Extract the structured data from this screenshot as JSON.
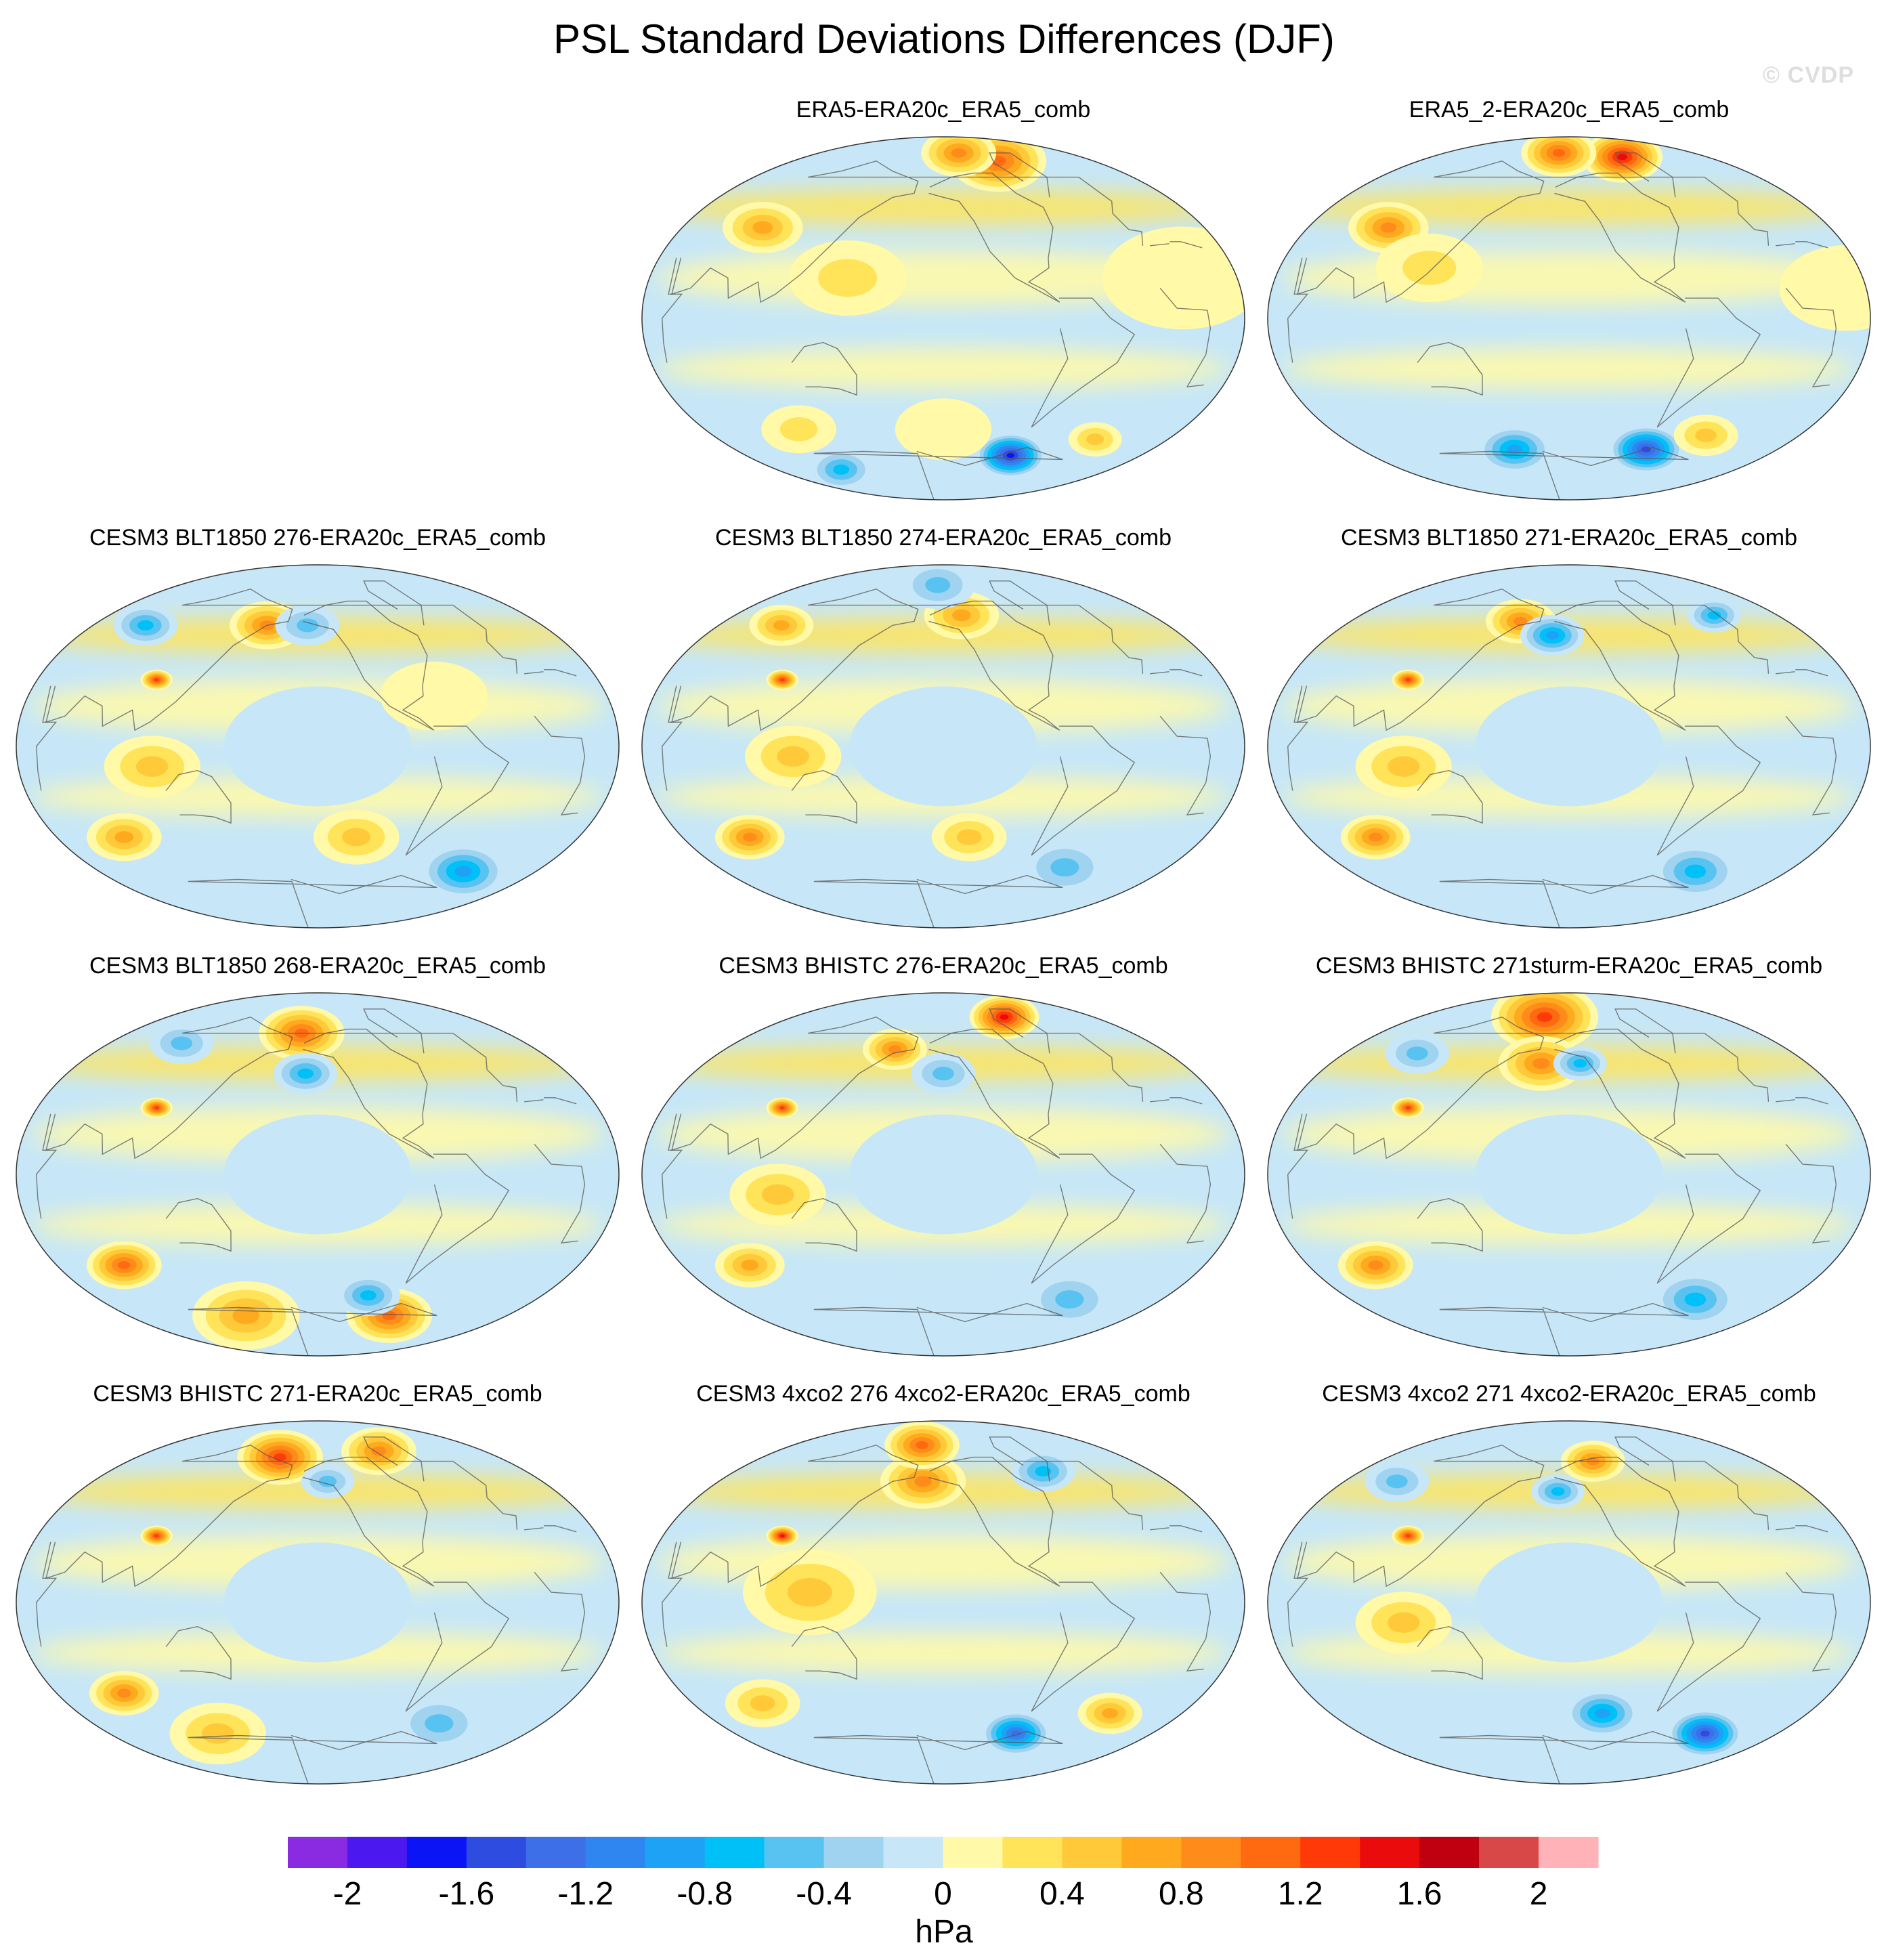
{
  "title": "PSL Standard Deviations Differences (DJF)",
  "watermark": "© CVDP",
  "units": "hPa",
  "colorbar": {
    "levels": [
      -2.2,
      -2.0,
      -1.8,
      -1.6,
      -1.4,
      -1.2,
      -1.0,
      -0.8,
      -0.6,
      -0.4,
      -0.2,
      0,
      0.2,
      0.4,
      0.6,
      0.8,
      1.0,
      1.2,
      1.4,
      1.6,
      1.8,
      2.0,
      2.2
    ],
    "colors": [
      "#8a2be2",
      "#4b18f0",
      "#0a14f5",
      "#2e4de0",
      "#3d6fe8",
      "#2f86f0",
      "#1ea2f5",
      "#00c0f8",
      "#58c3f0",
      "#9fd3ef",
      "#c7e7f8",
      "#fff9a8",
      "#ffe45a",
      "#ffc93a",
      "#ffaa1e",
      "#ff8c1a",
      "#ff6a10",
      "#ff3a08",
      "#ea0c0c",
      "#c00010",
      "#d94848",
      "#ffb3b8"
    ],
    "tick_labels": [
      {
        "value": -2.0,
        "label": "-2"
      },
      {
        "value": -1.6,
        "label": "-1.6"
      },
      {
        "value": -1.2,
        "label": "-1.2"
      },
      {
        "value": -0.8,
        "label": "-0.8"
      },
      {
        "value": -0.4,
        "label": "-0.4"
      },
      {
        "value": 0,
        "label": "0"
      },
      {
        "value": 0.4,
        "label": "0.4"
      },
      {
        "value": 0.8,
        "label": "0.8"
      },
      {
        "value": 1.2,
        "label": "1.2"
      },
      {
        "value": 1.6,
        "label": "1.6"
      },
      {
        "value": 2.0,
        "label": "2"
      }
    ]
  },
  "panels": [
    {
      "title": "ERA5-ERA20c_ERA5_comb",
      "features": [
        {
          "lon": -60,
          "lat": 78,
          "v": 1.2,
          "r": 18
        },
        {
          "lon": -120,
          "lat": 82,
          "v": 1.0,
          "r": 14
        },
        {
          "lon": 70,
          "lat": 45,
          "v": 0.8,
          "r": 15
        },
        {
          "lon": 150,
          "lat": 20,
          "v": 0.4,
          "r": 22
        },
        {
          "lon": 0,
          "lat": 20,
          "v": 0.3,
          "r": 30
        },
        {
          "lon": -70,
          "lat": -68,
          "v": -1.8,
          "r": 13
        },
        {
          "lon": 0,
          "lat": -60,
          "v": 0.6,
          "r": 10
        },
        {
          "lon": 80,
          "lat": -55,
          "v": 0.4,
          "r": 14
        },
        {
          "lon": -150,
          "lat": -55,
          "v": 0.3,
          "r": 18
        },
        {
          "lon": 60,
          "lat": -75,
          "v": -0.8,
          "r": 12
        }
      ]
    },
    {
      "title": "ERA5_2-ERA20c_ERA5_comb",
      "features": [
        {
          "lon": -55,
          "lat": 80,
          "v": 1.6,
          "r": 15
        },
        {
          "lon": -170,
          "lat": 82,
          "v": 1.2,
          "r": 14
        },
        {
          "lon": 70,
          "lat": 45,
          "v": 0.9,
          "r": 15
        },
        {
          "lon": 120,
          "lat": 25,
          "v": 0.4,
          "r": 20
        },
        {
          "lon": 20,
          "lat": 15,
          "v": 0.3,
          "r": 25
        },
        {
          "lon": -65,
          "lat": -65,
          "v": -1.5,
          "r": 14
        },
        {
          "lon": -20,
          "lat": -58,
          "v": 0.5,
          "r": 12
        },
        {
          "lon": 150,
          "lat": -65,
          "v": -0.9,
          "r": 14
        }
      ]
    },
    {
      "title": "CESM3 BLT1850 276-ERA20c_ERA5_comb",
      "features": [
        {
          "lon": 100,
          "lat": 33,
          "v": 1.4,
          "r": 6
        },
        {
          "lon": 160,
          "lat": 60,
          "v": 1.0,
          "r": 14
        },
        {
          "lon": -160,
          "lat": 60,
          "v": -0.7,
          "r": 12
        },
        {
          "lon": 40,
          "lat": 60,
          "v": -0.8,
          "r": 12
        },
        {
          "lon": 60,
          "lat": -45,
          "v": 0.8,
          "r": 14
        },
        {
          "lon": -120,
          "lat": -45,
          "v": 0.6,
          "r": 16
        },
        {
          "lon": 0,
          "lat": -62,
          "v": -0.9,
          "r": 16
        },
        {
          "lon": -150,
          "lat": 0,
          "v": -0.3,
          "r": 35
        },
        {
          "lon": 110,
          "lat": -10,
          "v": 0.6,
          "r": 18
        },
        {
          "lon": -75,
          "lat": 25,
          "v": 0.3,
          "r": 20
        }
      ]
    },
    {
      "title": "CESM3 BLT1850 274-ERA20c_ERA5_comb",
      "features": [
        {
          "lon": 100,
          "lat": 33,
          "v": 1.4,
          "r": 6
        },
        {
          "lon": -130,
          "lat": 65,
          "v": 0.8,
          "r": 14
        },
        {
          "lon": -160,
          "lat": 80,
          "v": -0.7,
          "r": 14
        },
        {
          "lon": 50,
          "lat": 60,
          "v": 0.8,
          "r": 12
        },
        {
          "lon": 60,
          "lat": -45,
          "v": 1.0,
          "r": 13
        },
        {
          "lon": -130,
          "lat": -45,
          "v": 0.6,
          "r": 14
        },
        {
          "lon": -30,
          "lat": -60,
          "v": -0.7,
          "r": 16
        },
        {
          "lon": -150,
          "lat": 0,
          "v": -0.3,
          "r": 35
        },
        {
          "lon": 120,
          "lat": -5,
          "v": 0.6,
          "r": 18
        }
      ]
    },
    {
      "title": "CESM3 BLT1850 271-ERA20c_ERA5_comb",
      "features": [
        {
          "lon": 100,
          "lat": 33,
          "v": 1.4,
          "r": 6
        },
        {
          "lon": 160,
          "lat": 62,
          "v": 1.0,
          "r": 13
        },
        {
          "lon": -165,
          "lat": 55,
          "v": -0.9,
          "r": 12
        },
        {
          "lon": 10,
          "lat": 65,
          "v": -0.8,
          "r": 10
        },
        {
          "lon": 60,
          "lat": -45,
          "v": 1.0,
          "r": 13
        },
        {
          "lon": -20,
          "lat": -62,
          "v": -0.8,
          "r": 16
        },
        {
          "lon": -150,
          "lat": 0,
          "v": -0.3,
          "r": 35
        },
        {
          "lon": 110,
          "lat": -10,
          "v": 0.6,
          "r": 18
        }
      ]
    },
    {
      "title": "CESM3 BLT1850 268-ERA20c_ERA5_comb",
      "features": [
        {
          "lon": 100,
          "lat": 33,
          "v": 1.4,
          "r": 6
        },
        {
          "lon": -170,
          "lat": 70,
          "v": 1.2,
          "r": 16
        },
        {
          "lon": -160,
          "lat": 50,
          "v": -0.8,
          "r": 12
        },
        {
          "lon": 60,
          "lat": 65,
          "v": -0.7,
          "r": 12
        },
        {
          "lon": 60,
          "lat": -45,
          "v": 1.2,
          "r": 14
        },
        {
          "lon": -60,
          "lat": -70,
          "v": 1.2,
          "r": 16
        },
        {
          "lon": -100,
          "lat": -60,
          "v": -0.8,
          "r": 12
        },
        {
          "lon": -150,
          "lat": 0,
          "v": -0.3,
          "r": 35
        },
        {
          "lon": 120,
          "lat": -70,
          "v": 0.8,
          "r": 20
        }
      ]
    },
    {
      "title": "CESM3 BHISTC 276-ERA20c_ERA5_comb",
      "features": [
        {
          "lon": 100,
          "lat": 33,
          "v": 1.4,
          "r": 6
        },
        {
          "lon": -50,
          "lat": 78,
          "v": 1.6,
          "r": 13
        },
        {
          "lon": 160,
          "lat": 62,
          "v": 1.0,
          "r": 12
        },
        {
          "lon": -150,
          "lat": 50,
          "v": -0.6,
          "r": 12
        },
        {
          "lon": 60,
          "lat": -45,
          "v": 0.8,
          "r": 13
        },
        {
          "lon": -20,
          "lat": -62,
          "v": -0.7,
          "r": 16
        },
        {
          "lon": -150,
          "lat": 0,
          "v": -0.3,
          "r": 35
        },
        {
          "lon": 110,
          "lat": -10,
          "v": 0.5,
          "r": 18
        }
      ]
    },
    {
      "title": "CESM3 BHISTC 271sturm-ERA20c_ERA5_comb",
      "features": [
        {
          "lon": 100,
          "lat": 33,
          "v": 1.4,
          "r": 6
        },
        {
          "lon": 170,
          "lat": 78,
          "v": 1.3,
          "r": 20
        },
        {
          "lon": -175,
          "lat": 55,
          "v": 1.0,
          "r": 16
        },
        {
          "lon": -140,
          "lat": 55,
          "v": -0.8,
          "r": 10
        },
        {
          "lon": 60,
          "lat": 60,
          "v": -0.7,
          "r": 12
        },
        {
          "lon": 60,
          "lat": -45,
          "v": 1.0,
          "r": 14
        },
        {
          "lon": -20,
          "lat": -62,
          "v": -0.8,
          "r": 16
        },
        {
          "lon": -150,
          "lat": 0,
          "v": -0.3,
          "r": 35
        }
      ]
    },
    {
      "title": "CESM3 BHISTC 271-ERA20c_ERA5_comb",
      "features": [
        {
          "lon": 100,
          "lat": 33,
          "v": 1.4,
          "r": 6
        },
        {
          "lon": 160,
          "lat": 72,
          "v": 1.4,
          "r": 16
        },
        {
          "lon": -60,
          "lat": 75,
          "v": 1.0,
          "r": 14
        },
        {
          "lon": -140,
          "lat": 60,
          "v": -0.7,
          "r": 10
        },
        {
          "lon": 60,
          "lat": -45,
          "v": 0.9,
          "r": 13
        },
        {
          "lon": -30,
          "lat": -60,
          "v": -0.6,
          "r": 16
        },
        {
          "lon": -150,
          "lat": 0,
          "v": -0.3,
          "r": 35
        },
        {
          "lon": 100,
          "lat": -65,
          "v": 0.6,
          "r": 18
        }
      ]
    },
    {
      "title": "CESM3 4xco2 276 4xco2-ERA20c_ERA5_comb",
      "features": [
        {
          "lon": 100,
          "lat": 33,
          "v": 1.6,
          "r": 6
        },
        {
          "lon": -170,
          "lat": 60,
          "v": 1.0,
          "r": 16
        },
        {
          "lon": 175,
          "lat": 78,
          "v": 1.2,
          "r": 14
        },
        {
          "lon": -40,
          "lat": 65,
          "v": -0.8,
          "r": 12
        },
        {
          "lon": 130,
          "lat": 5,
          "v": 0.6,
          "r": 25
        },
        {
          "lon": -70,
          "lat": -65,
          "v": -1.4,
          "r": 13
        },
        {
          "lon": 0,
          "lat": -55,
          "v": 0.8,
          "r": 12
        },
        {
          "lon": 60,
          "lat": -50,
          "v": 0.6,
          "r": 14
        }
      ]
    },
    {
      "title": "CESM3 4xco2 271 4xco2-ERA20c_ERA5_comb",
      "features": [
        {
          "lon": 100,
          "lat": 33,
          "v": 1.4,
          "r": 6
        },
        {
          "lon": -120,
          "lat": 70,
          "v": 1.0,
          "r": 12
        },
        {
          "lon": -160,
          "lat": 55,
          "v": -0.8,
          "r": 10
        },
        {
          "lon": 40,
          "lat": 60,
          "v": -0.7,
          "r": 12
        },
        {
          "lon": 0,
          "lat": -65,
          "v": -1.6,
          "r": 14
        },
        {
          "lon": -120,
          "lat": -55,
          "v": -1.0,
          "r": 14
        },
        {
          "lon": -150,
          "lat": 0,
          "v": -0.3,
          "r": 35
        },
        {
          "lon": 110,
          "lat": -10,
          "v": 0.5,
          "r": 18
        }
      ]
    }
  ]
}
